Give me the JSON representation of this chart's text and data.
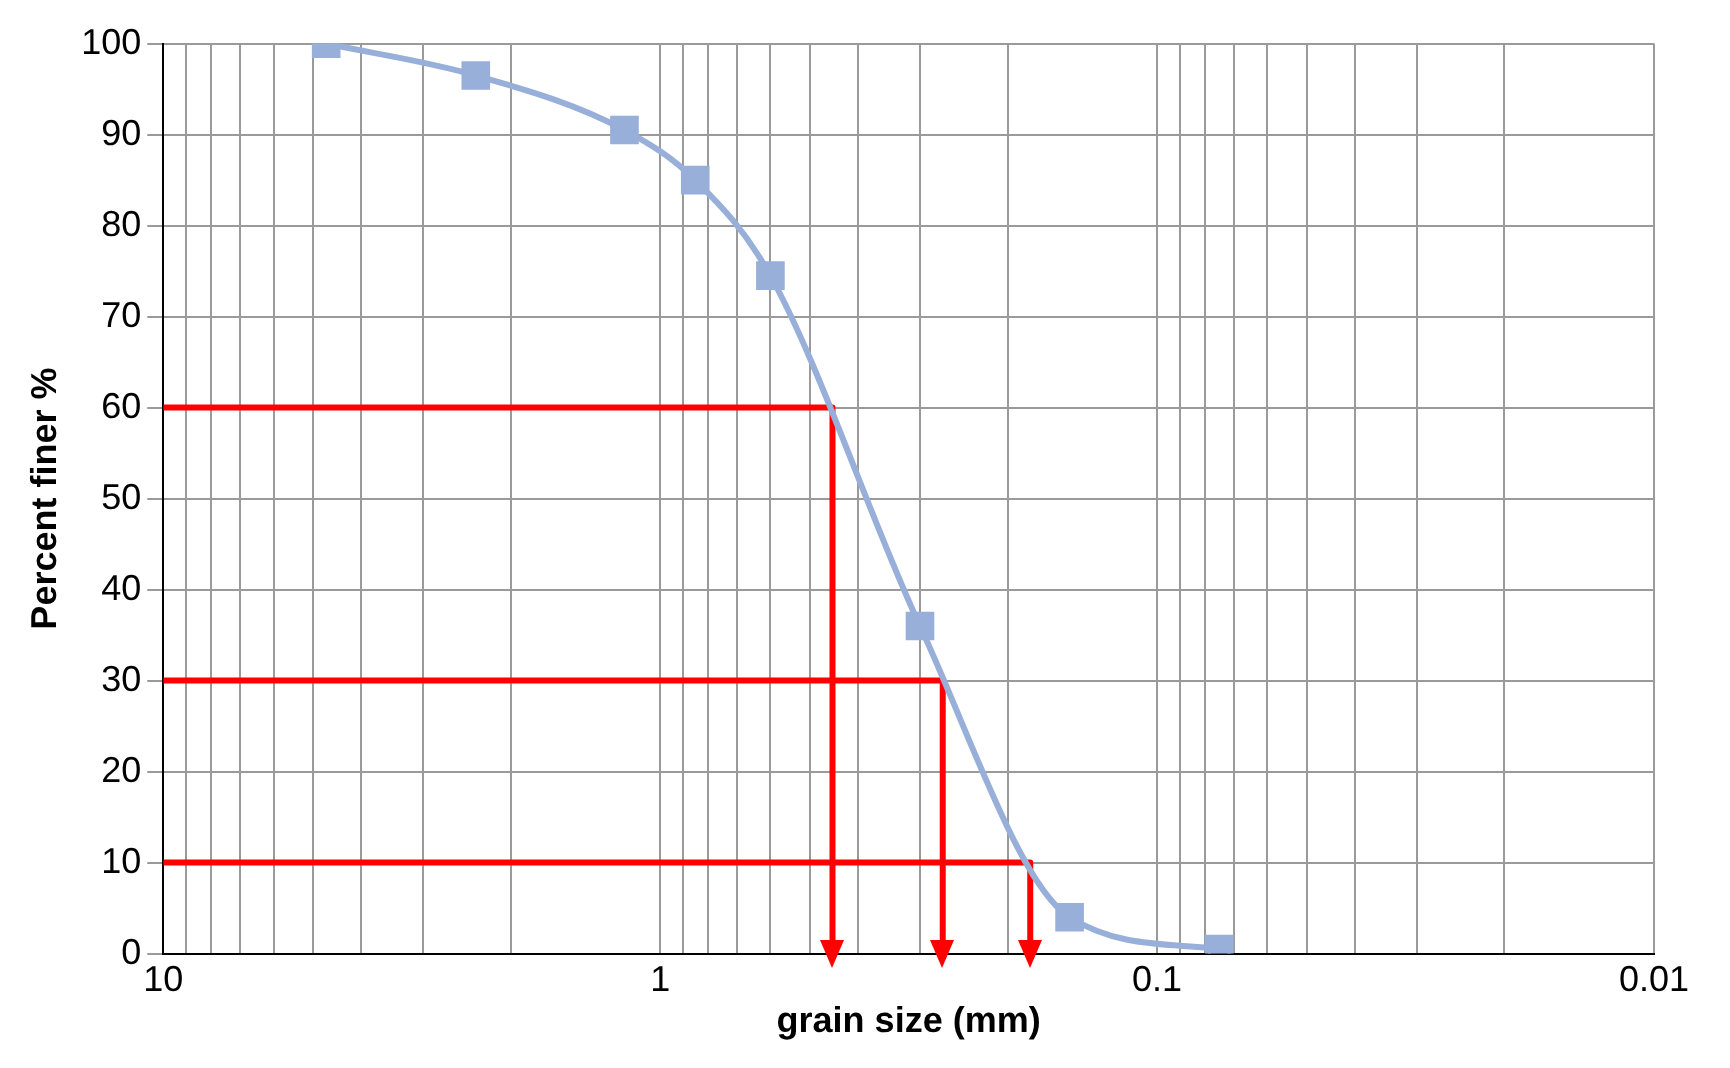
{
  "chart_data": {
    "type": "line",
    "xlabel": "grain size (mm)",
    "ylabel": "Percent finer %",
    "log": "x",
    "xlim": [
      10,
      0.01
    ],
    "ylim": [
      0,
      100
    ],
    "xticks": [
      10,
      {
        "value": 9,
        "label": null
      },
      {
        "value": 8,
        "label": null
      },
      {
        "value": 7,
        "label": null
      },
      {
        "value": 6,
        "label": null
      },
      {
        "value": 5,
        "label": null
      },
      {
        "value": 4,
        "label": null
      },
      {
        "value": 3,
        "label": null
      },
      {
        "value": 2,
        "label": null
      },
      1,
      {
        "value": 0.9,
        "label": null
      },
      {
        "value": 0.8,
        "label": null
      },
      {
        "value": 0.7,
        "label": null
      },
      {
        "value": 0.6,
        "label": null
      },
      {
        "value": 0.5,
        "label": null
      },
      {
        "value": 0.4,
        "label": null
      },
      {
        "value": 0.3,
        "label": null
      },
      {
        "value": 0.2,
        "label": null
      },
      0.1,
      {
        "value": 0.09,
        "label": null
      },
      {
        "value": 0.08,
        "label": null
      },
      {
        "value": 0.07,
        "label": null
      },
      {
        "value": 0.06,
        "label": null
      },
      {
        "value": 0.05,
        "label": null
      },
      {
        "value": 0.04,
        "label": null
      },
      {
        "value": 0.03,
        "label": null
      },
      {
        "value": 0.02,
        "label": null
      },
      0.01
    ],
    "yticks": [
      0,
      10,
      20,
      30,
      40,
      50,
      60,
      70,
      80,
      90,
      100
    ],
    "grid": true,
    "legend": false,
    "marker": "square",
    "series": [
      {
        "color": "#98afd9",
        "x": [
          4.7,
          2.35,
          1.18,
          0.85,
          0.6,
          0.3,
          0.15,
          0.075
        ],
        "values": [
          100,
          96.5,
          90.5,
          85,
          74.5,
          36,
          4,
          0.5
        ]
      },
      {
        "type": "line",
        "color": "#ff0000",
        "marker": "none",
        "x": [
          10,
          0.45,
          0.45
        ],
        "values": [
          60,
          60,
          0
        ]
      },
      {
        "type": "line",
        "color": "#ff0000",
        "marker": "none",
        "x": [
          10,
          0.27,
          0.27
        ],
        "values": [
          30,
          30,
          0
        ]
      },
      {
        "type": "line",
        "color": "#ff0000",
        "marker": "none",
        "x": [
          10,
          0.18,
          0.18
        ],
        "values": [
          10,
          10,
          0
        ]
      }
    ]
  }
}
